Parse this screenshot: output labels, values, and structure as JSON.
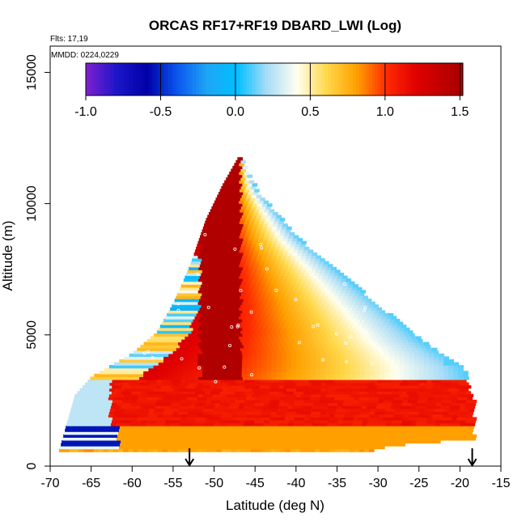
{
  "chart_data": {
    "type": "heatmap",
    "title": "ORCAS RF17+RF19 DBARD_LWI (Log)",
    "annotations": [
      "Flts: 17,19",
      "MMDD: 0224,0229"
    ],
    "xlabel": "Latitude (deg N)",
    "ylabel": "Altitude (m)",
    "xlim": [
      -70,
      -15
    ],
    "ylim": [
      0,
      16000
    ],
    "xticks": [
      -70,
      -65,
      -60,
      -55,
      -50,
      -45,
      -40,
      -35,
      -30,
      -25,
      -20,
      -15
    ],
    "yticks": [
      0,
      5000,
      10000,
      15000
    ],
    "colorbar": {
      "range": [
        -1.0,
        1.52
      ],
      "ticks": [
        -1.0,
        -0.5,
        0.0,
        0.5,
        1.0,
        1.5
      ],
      "tick_labels": [
        "-1.0",
        "-0.5",
        "0.0",
        "0.5",
        "1.0",
        "1.5"
      ],
      "stops": [
        {
          "v": -1.0,
          "c": "#7b1fd0"
        },
        {
          "v": -0.8,
          "c": "#1a16c8"
        },
        {
          "v": -0.6,
          "c": "#0000a8"
        },
        {
          "v": -0.4,
          "c": "#0a56ee"
        },
        {
          "v": -0.2,
          "c": "#1ea6f5"
        },
        {
          "v": 0.0,
          "c": "#00bfff"
        },
        {
          "v": 0.2,
          "c": "#a8dcf6"
        },
        {
          "v": 0.4,
          "c": "#fffff0"
        },
        {
          "v": 0.6,
          "c": "#ffd84a"
        },
        {
          "v": 0.8,
          "c": "#ffa000"
        },
        {
          "v": 1.0,
          "c": "#ff2a00"
        },
        {
          "v": 1.2,
          "c": "#e00000"
        },
        {
          "v": 1.52,
          "c": "#a40000"
        }
      ]
    },
    "region": {
      "peak": [
        -47,
        11800
      ],
      "left_edge": [
        [
          -69,
          500
        ],
        [
          -67,
          2700
        ],
        [
          -65,
          3400
        ],
        [
          -60,
          4300
        ],
        [
          -57,
          5100
        ],
        [
          -55,
          6200
        ],
        [
          -53,
          7600
        ],
        [
          -51,
          9400
        ],
        [
          -49,
          10700
        ],
        [
          -47,
          11800
        ]
      ],
      "right_edge": [
        [
          -47,
          11800
        ],
        [
          -45,
          10500
        ],
        [
          -40,
          8700
        ],
        [
          -35,
          7400
        ],
        [
          -30,
          6100
        ],
        [
          -25,
          4800
        ],
        [
          -20,
          3800
        ],
        [
          -19.5,
          3500
        ],
        [
          -19,
          2800
        ],
        [
          -18.5,
          1400
        ],
        [
          -19,
          1000
        ],
        [
          -25,
          900
        ],
        [
          -30,
          700
        ],
        [
          -36,
          100
        ]
      ]
    },
    "markers": {
      "arrows_latitude": [
        -53,
        -18.5
      ]
    }
  }
}
